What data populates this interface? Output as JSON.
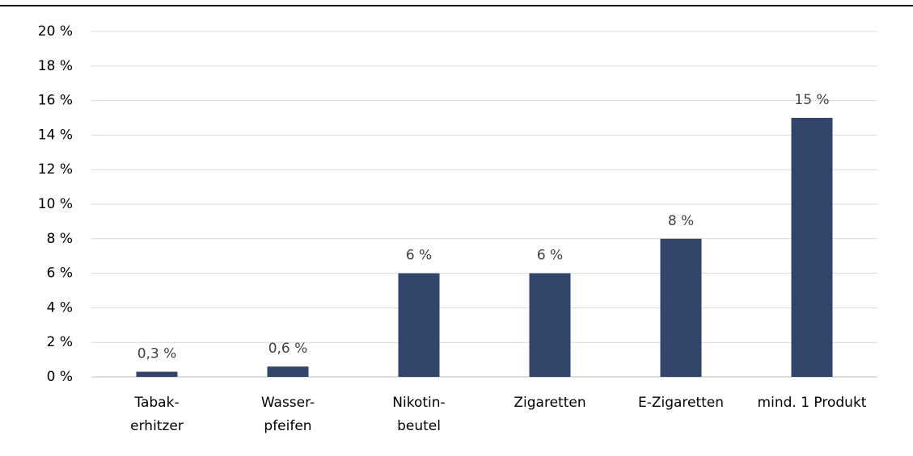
{
  "chart_data": {
    "type": "bar",
    "categories": [
      [
        "Tabak-",
        "erhitzer"
      ],
      [
        "Wasser-",
        "pfeifen"
      ],
      [
        "Nikotin-",
        "beutel"
      ],
      [
        "Zigaretten"
      ],
      [
        "E-Zigaretten"
      ],
      [
        "mind. 1 Produkt"
      ]
    ],
    "values": [
      0.3,
      0.6,
      6,
      6,
      8,
      15
    ],
    "value_labels": [
      "0,3 %",
      "0,6 %",
      "6 %",
      "6 %",
      "8 %",
      "15 %"
    ],
    "color": "#33456b",
    "ylim": [
      0,
      20
    ],
    "yticks": [
      {
        "value": 0,
        "label": "0 %"
      },
      {
        "value": 2,
        "label": "2 %"
      },
      {
        "value": 4,
        "label": "4 %"
      },
      {
        "value": 6,
        "label": "6 %"
      },
      {
        "value": 8,
        "label": "8 %"
      },
      {
        "value": 10,
        "label": "10 %"
      },
      {
        "value": 12,
        "label": "12 %"
      },
      {
        "value": 14,
        "label": "14 %"
      },
      {
        "value": 16,
        "label": "16 %"
      },
      {
        "value": 18,
        "label": "18 %"
      },
      {
        "value": 20,
        "label": "20 %"
      }
    ],
    "grid": true
  }
}
